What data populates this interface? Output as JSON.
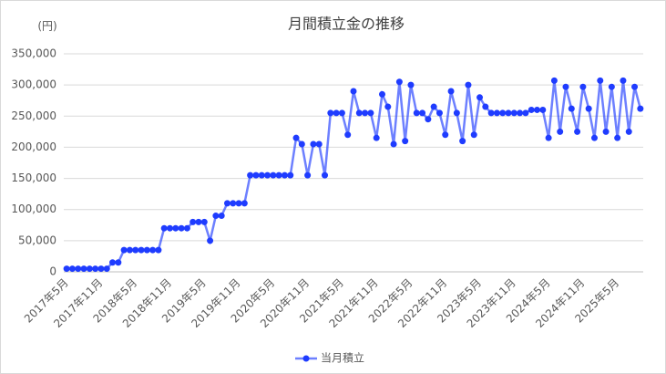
{
  "chart_data": {
    "type": "line",
    "title": "月間積立金の推移",
    "y_label": "(円)",
    "categories": [
      "2017年5月",
      null,
      null,
      null,
      null,
      null,
      "2017年11月",
      null,
      null,
      null,
      null,
      null,
      "2018年5月",
      null,
      null,
      null,
      null,
      null,
      "2018年11月",
      null,
      null,
      null,
      null,
      null,
      "2019年5月",
      null,
      null,
      null,
      null,
      null,
      "2019年11月",
      null,
      null,
      null,
      null,
      null,
      "2020年5月",
      null,
      null,
      null,
      null,
      null,
      "2020年11月",
      null,
      null,
      null,
      null,
      null,
      "2021年5月",
      null,
      null,
      null,
      null,
      null,
      "2021年11月",
      null,
      null,
      null,
      null,
      null,
      "2022年5月",
      null,
      null,
      null,
      null,
      null,
      "2022年11月",
      null,
      null,
      null,
      null,
      null,
      "2023年5月",
      null,
      null,
      null,
      null,
      null,
      "2023年11月",
      null,
      null,
      null,
      null,
      null,
      "2024年5月",
      null,
      null,
      null,
      null,
      null,
      "2024年11月",
      null,
      null,
      null,
      null,
      null,
      "2025年5月",
      null,
      null,
      null,
      null
    ],
    "series": [
      {
        "name": "当月積立",
        "color": "#1f3cff",
        "values": [
          5000,
          5000,
          5000,
          5000,
          5000,
          5000,
          5000,
          5000,
          15000,
          15000,
          35000,
          35000,
          35000,
          35000,
          35000,
          35000,
          35000,
          70000,
          70000,
          70000,
          70000,
          70000,
          80000,
          80000,
          80000,
          50000,
          90000,
          90000,
          110000,
          110000,
          110000,
          110000,
          155000,
          155000,
          155000,
          155000,
          155000,
          155000,
          155000,
          155000,
          215000,
          205000,
          155000,
          205000,
          205000,
          155000,
          255000,
          255000,
          255000,
          220000,
          290000,
          255000,
          255000,
          255000,
          215000,
          285000,
          265000,
          205000,
          305000,
          210000,
          300000,
          255000,
          255000,
          245000,
          265000,
          255000,
          220000,
          290000,
          255000,
          210000,
          300000,
          220000,
          280000,
          265000,
          255000,
          255000,
          255000,
          255000,
          255000,
          255000,
          255000,
          260000,
          260000,
          260000,
          215000,
          307000,
          225000,
          297000,
          262000,
          225000,
          297000,
          262000,
          215000,
          307000,
          225000,
          297000,
          215000,
          307000,
          225000,
          297000,
          262000
        ]
      }
    ],
    "ylim": [
      0,
      350000
    ],
    "yticks": [
      0,
      {
        "value": 50000,
        "label": "50,000"
      },
      {
        "value": 100000,
        "label": "100,000"
      },
      {
        "value": 150000,
        "label": "150,000"
      },
      {
        "value": 200000,
        "label": "200,000"
      },
      {
        "value": 250000,
        "label": "250,000"
      },
      {
        "value": 300000,
        "label": "300,000"
      },
      {
        "value": 350000,
        "label": "350,000"
      }
    ],
    "grid": true,
    "legend": "bottom"
  }
}
